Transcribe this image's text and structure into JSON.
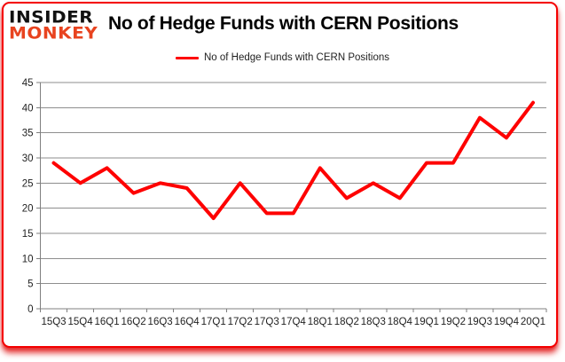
{
  "logo": {
    "line1": "INSIDER",
    "line2": "MONKEY"
  },
  "header": {
    "title": "No of Hedge Funds with CERN Positions"
  },
  "legend": {
    "label": "No of Hedge Funds with CERN Positions"
  },
  "chart_data": {
    "type": "line",
    "title": "No of Hedge Funds with CERN Positions",
    "categories": [
      "15Q3",
      "15Q4",
      "16Q1",
      "16Q2",
      "16Q3",
      "16Q4",
      "17Q1",
      "17Q2",
      "17Q3",
      "17Q4",
      "18Q1",
      "18Q2",
      "18Q3",
      "18Q4",
      "19Q1",
      "19Q2",
      "19Q3",
      "19Q4",
      "20Q1"
    ],
    "series": [
      {
        "name": "No of Hedge Funds with CERN Positions",
        "values": [
          29,
          25,
          28,
          23,
          25,
          24,
          18,
          25,
          19,
          19,
          28,
          22,
          25,
          22,
          29,
          29,
          38,
          34,
          41
        ]
      }
    ],
    "xlabel": "",
    "ylabel": "",
    "ylim": [
      0,
      45
    ],
    "yticks": [
      0,
      5,
      10,
      15,
      20,
      25,
      30,
      35,
      40,
      45
    ],
    "grid": true,
    "legend_position": "top-center",
    "colors": {
      "line": "#fe0000",
      "grid": "#8e8e8e",
      "axis": "#7f7f7f",
      "axis_text": "#1f1f1f",
      "frame_border": "#f40000",
      "logo_text": "#111111",
      "logo_accent": "#e8431f",
      "title_text": "#000000"
    }
  }
}
